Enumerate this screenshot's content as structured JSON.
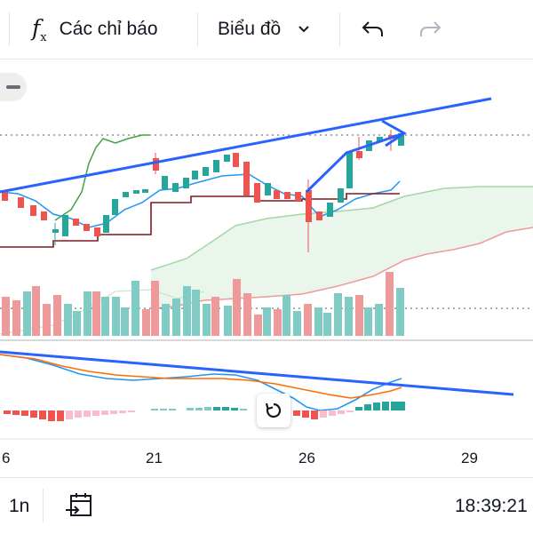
{
  "toolbar": {
    "indicators_label": "Các chỉ báo",
    "chart_type_label": "Biểu đồ",
    "icons": [
      "fx-icon",
      "chevron-down-icon",
      "undo-icon",
      "redo-icon"
    ]
  },
  "x_axis": {
    "labels": [
      "6",
      "21",
      "26",
      "29"
    ]
  },
  "bottom_bar": {
    "interval_label": "1n",
    "time": "18:39:21",
    "icons": [
      "go-to-date-icon"
    ]
  },
  "chart_data": {
    "type": "candlestick",
    "x_axis_labels": [
      "6",
      "21",
      "26",
      "29"
    ],
    "panes": [
      "price-with-ichimoku-and-volume",
      "macd"
    ],
    "colors": {
      "up": "#26a69a",
      "down": "#ef5350",
      "trendline": "#2962ff",
      "tenkan": "#2196f3",
      "kijun": "#801922",
      "chikou": "#43a047",
      "cloud": "#e8f5e9",
      "macd_line": "#2196f3",
      "signal_line": "#ff6d00"
    }
  }
}
